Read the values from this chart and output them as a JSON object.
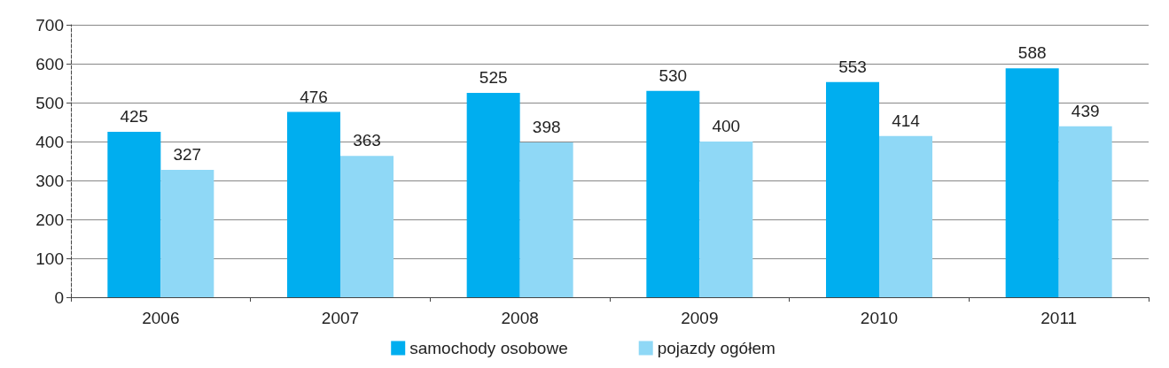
{
  "chart_data": {
    "type": "bar",
    "categories": [
      "2006",
      "2007",
      "2008",
      "2009",
      "2010",
      "2011"
    ],
    "series": [
      {
        "name": "samochody osobowe",
        "color": "#00aeef",
        "values": [
          425,
          476,
          525,
          530,
          553,
          588
        ]
      },
      {
        "name": "pojazdy ogółem",
        "color": "#8fd8f6",
        "values": [
          327,
          363,
          398,
          400,
          414,
          439
        ]
      }
    ],
    "ylim": [
      0,
      700
    ],
    "yticks": [
      0,
      100,
      200,
      300,
      400,
      500,
      600,
      700
    ],
    "grid": "y",
    "legend": "bottom",
    "data_labels": true
  }
}
